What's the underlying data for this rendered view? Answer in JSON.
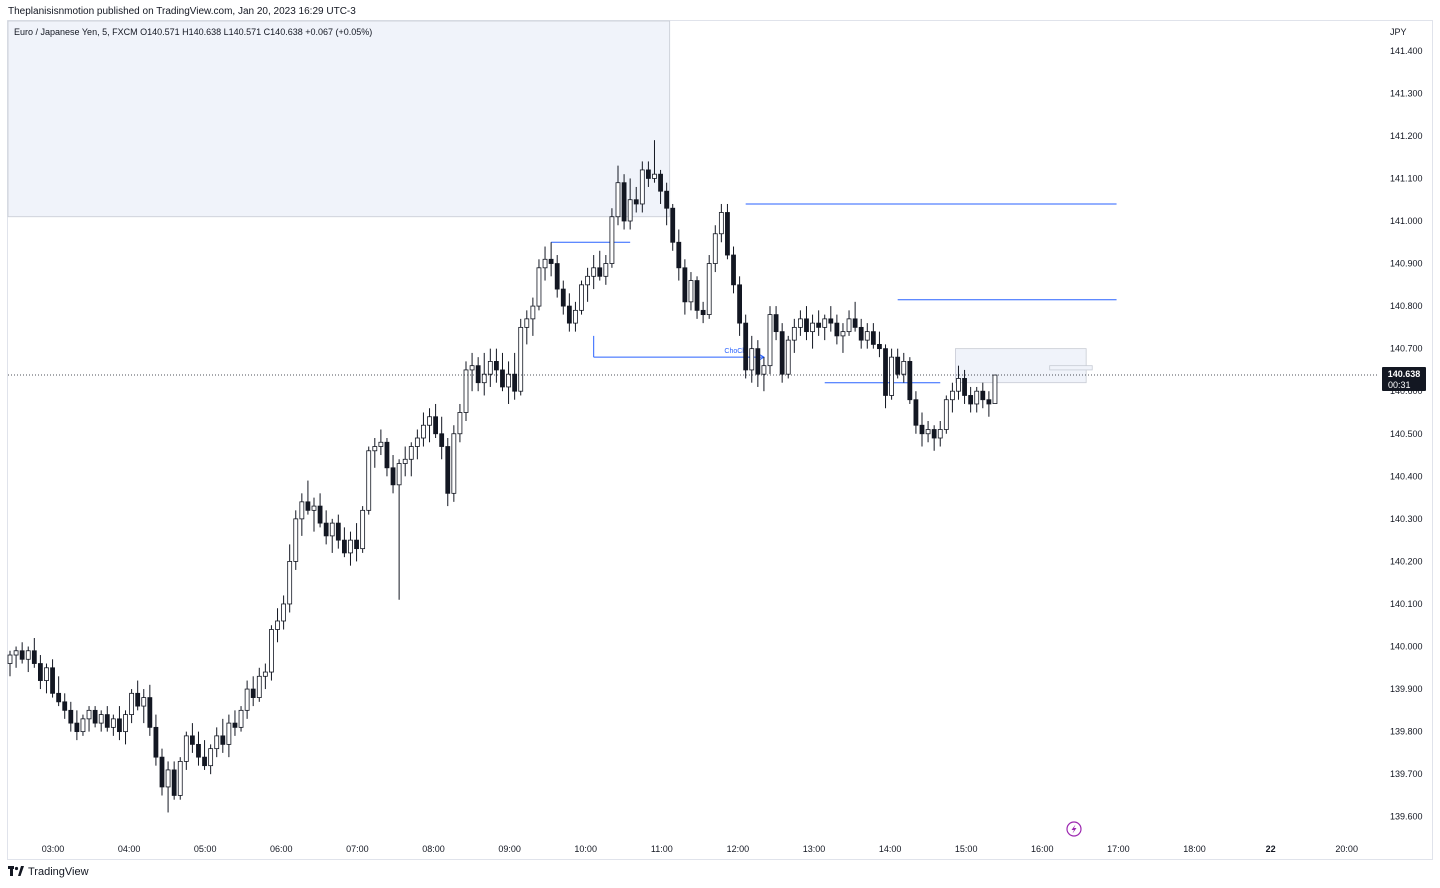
{
  "header": {
    "publish_text": "Theplanisisnmotion published on TradingView.com, Jan 20, 2023 16:29 UTC-3"
  },
  "legend": {
    "text": "Euro / Japanese Yen, 5, FXCM  O140.571  H140.638  L140.571  C140.638  +0.067 (+0.05%)"
  },
  "footer": {
    "brand": "TradingView"
  },
  "colors": {
    "up_body": "#ffffff",
    "down_body": "#131722",
    "wick": "#131722",
    "level_line": "#2962ff",
    "zone_fill": "#f0f3fa",
    "price_tag_bg": "#131722",
    "alert_icon": "#9c27b0"
  },
  "chart_data": {
    "type": "candlestick",
    "symbol": "Euro / Japanese Yen",
    "currency": "JPY",
    "interval": "5",
    "source": "FXCM",
    "y_range": [
      139.55,
      141.47
    ],
    "y_ticks": [
      "141.400",
      "141.300",
      "141.200",
      "141.100",
      "141.000",
      "140.900",
      "140.800",
      "140.700",
      "140.600",
      "140.500",
      "140.400",
      "140.300",
      "140.200",
      "140.100",
      "140.000",
      "139.900",
      "139.800",
      "139.700",
      "139.600"
    ],
    "x_ticks": [
      "03:00",
      "04:00",
      "05:00",
      "06:00",
      "07:00",
      "08:00",
      "09:00",
      "10:00",
      "11:00",
      "12:00",
      "13:00",
      "14:00",
      "15:00",
      "16:00",
      "17:00",
      "18:00",
      "22",
      "20:00"
    ],
    "last_price": "140.638",
    "countdown": "00:31",
    "annotations": [
      {
        "text": "ChoCh"
      }
    ],
    "candles": [
      [
        139.96,
        139.99,
        139.93,
        139.98
      ],
      [
        139.98,
        140.0,
        139.95,
        139.99
      ],
      [
        139.99,
        140.01,
        139.96,
        139.97
      ],
      [
        139.97,
        140.0,
        139.94,
        139.99
      ],
      [
        139.99,
        140.02,
        139.95,
        139.96
      ],
      [
        139.96,
        139.98,
        139.9,
        139.92
      ],
      [
        139.92,
        139.96,
        139.89,
        139.95
      ],
      [
        139.95,
        139.97,
        139.88,
        139.89
      ],
      [
        139.89,
        139.93,
        139.86,
        139.87
      ],
      [
        139.87,
        139.89,
        139.83,
        139.85
      ],
      [
        139.85,
        139.87,
        139.8,
        139.82
      ],
      [
        139.82,
        139.85,
        139.78,
        139.8
      ],
      [
        139.8,
        139.84,
        139.79,
        139.83
      ],
      [
        139.83,
        139.86,
        139.8,
        139.85
      ],
      [
        139.85,
        139.86,
        139.81,
        139.82
      ],
      [
        139.82,
        139.85,
        139.8,
        139.84
      ],
      [
        139.84,
        139.86,
        139.8,
        139.81
      ],
      [
        139.81,
        139.84,
        139.79,
        139.83
      ],
      [
        139.83,
        139.86,
        139.78,
        139.8
      ],
      [
        139.8,
        139.85,
        139.77,
        139.84
      ],
      [
        139.84,
        139.9,
        139.82,
        139.89
      ],
      [
        139.89,
        139.92,
        139.85,
        139.86
      ],
      [
        139.86,
        139.9,
        139.82,
        139.88
      ],
      [
        139.88,
        139.91,
        139.79,
        139.81
      ],
      [
        139.81,
        139.84,
        139.72,
        139.74
      ],
      [
        139.74,
        139.76,
        139.65,
        139.67
      ],
      [
        139.67,
        139.73,
        139.61,
        139.71
      ],
      [
        139.71,
        139.73,
        139.64,
        139.65
      ],
      [
        139.65,
        139.74,
        139.64,
        139.73
      ],
      [
        139.73,
        139.8,
        139.71,
        139.79
      ],
      [
        139.79,
        139.82,
        139.75,
        139.77
      ],
      [
        139.77,
        139.8,
        139.72,
        139.74
      ],
      [
        139.74,
        139.78,
        139.71,
        139.72
      ],
      [
        139.72,
        139.77,
        139.7,
        139.76
      ],
      [
        139.76,
        139.81,
        139.74,
        139.79
      ],
      [
        139.79,
        139.83,
        139.75,
        139.77
      ],
      [
        139.77,
        139.84,
        139.74,
        139.82
      ],
      [
        139.82,
        139.85,
        139.79,
        139.81
      ],
      [
        139.81,
        139.86,
        139.8,
        139.85
      ],
      [
        139.85,
        139.92,
        139.83,
        139.9
      ],
      [
        139.9,
        139.93,
        139.86,
        139.88
      ],
      [
        139.88,
        139.95,
        139.87,
        139.93
      ],
      [
        139.93,
        139.96,
        139.9,
        139.94
      ],
      [
        139.94,
        140.05,
        139.92,
        140.04
      ],
      [
        140.04,
        140.09,
        140.01,
        140.06
      ],
      [
        140.06,
        140.12,
        140.04,
        140.1
      ],
      [
        140.1,
        140.24,
        140.08,
        140.2
      ],
      [
        140.2,
        140.32,
        140.18,
        140.3
      ],
      [
        140.3,
        140.36,
        140.26,
        140.34
      ],
      [
        140.34,
        140.39,
        140.31,
        140.32
      ],
      [
        140.32,
        140.35,
        140.27,
        140.33
      ],
      [
        140.33,
        140.36,
        140.28,
        140.29
      ],
      [
        140.29,
        140.32,
        140.24,
        140.26
      ],
      [
        140.26,
        140.3,
        140.22,
        140.29
      ],
      [
        140.29,
        140.31,
        140.23,
        140.25
      ],
      [
        140.25,
        140.28,
        140.21,
        140.22
      ],
      [
        140.22,
        140.27,
        140.19,
        140.25
      ],
      [
        140.25,
        140.29,
        140.2,
        140.23
      ],
      [
        140.23,
        140.33,
        140.22,
        140.32
      ],
      [
        140.32,
        140.47,
        140.31,
        140.46
      ],
      [
        140.46,
        140.49,
        140.42,
        140.47
      ],
      [
        140.47,
        140.51,
        140.45,
        140.48
      ],
      [
        140.48,
        140.49,
        140.4,
        140.42
      ],
      [
        140.42,
        140.45,
        140.36,
        140.38
      ],
      [
        140.38,
        140.44,
        140.11,
        140.43
      ],
      [
        140.43,
        140.47,
        140.4,
        140.44
      ],
      [
        140.44,
        140.48,
        140.4,
        140.47
      ],
      [
        140.47,
        140.51,
        140.44,
        140.49
      ],
      [
        140.49,
        140.55,
        140.47,
        140.52
      ],
      [
        140.52,
        140.56,
        140.48,
        140.54
      ],
      [
        140.54,
        140.57,
        140.49,
        140.5
      ],
      [
        140.5,
        140.54,
        140.44,
        140.47
      ],
      [
        140.47,
        140.49,
        140.33,
        140.36
      ],
      [
        140.36,
        140.52,
        140.34,
        140.5
      ],
      [
        140.5,
        140.57,
        140.48,
        140.55
      ],
      [
        140.55,
        140.67,
        140.53,
        140.65
      ],
      [
        140.65,
        140.69,
        140.6,
        140.66
      ],
      [
        140.66,
        140.68,
        140.6,
        140.62
      ],
      [
        140.62,
        140.69,
        140.59,
        140.64
      ],
      [
        140.64,
        140.7,
        140.61,
        140.67
      ],
      [
        140.67,
        140.7,
        140.62,
        140.65
      ],
      [
        140.65,
        140.69,
        140.6,
        140.61
      ],
      [
        140.61,
        140.67,
        140.57,
        140.64
      ],
      [
        140.64,
        140.69,
        140.58,
        140.6
      ],
      [
        140.6,
        140.77,
        140.59,
        140.75
      ],
      [
        140.75,
        140.79,
        140.71,
        140.77
      ],
      [
        140.77,
        140.82,
        140.73,
        140.8
      ],
      [
        140.8,
        140.91,
        140.79,
        140.89
      ],
      [
        140.89,
        140.94,
        140.86,
        140.91
      ],
      [
        140.91,
        140.95,
        140.87,
        140.9
      ],
      [
        140.9,
        140.92,
        140.82,
        140.84
      ],
      [
        140.84,
        140.86,
        140.78,
        140.8
      ],
      [
        140.8,
        140.83,
        140.74,
        140.76
      ],
      [
        140.76,
        140.81,
        140.74,
        140.79
      ],
      [
        140.79,
        140.86,
        140.78,
        140.85
      ],
      [
        140.85,
        140.89,
        140.81,
        140.87
      ],
      [
        140.87,
        140.92,
        140.84,
        140.89
      ],
      [
        140.89,
        140.93,
        140.86,
        140.87
      ],
      [
        140.87,
        140.92,
        140.85,
        140.9
      ],
      [
        140.9,
        141.03,
        140.89,
        141.01
      ],
      [
        141.01,
        141.13,
        140.99,
        141.09
      ],
      [
        141.09,
        141.11,
        140.98,
        141.0
      ],
      [
        141.0,
        141.1,
        140.98,
        141.05
      ],
      [
        141.05,
        141.08,
        141.02,
        141.04
      ],
      [
        141.04,
        141.14,
        141.02,
        141.12
      ],
      [
        141.12,
        141.14,
        141.08,
        141.1
      ],
      [
        141.1,
        141.19,
        141.09,
        141.11
      ],
      [
        141.11,
        141.12,
        141.04,
        141.07
      ],
      [
        141.07,
        141.09,
        140.99,
        141.03
      ],
      [
        141.03,
        141.04,
        140.93,
        140.95
      ],
      [
        140.95,
        140.98,
        140.86,
        140.89
      ],
      [
        140.89,
        140.91,
        140.78,
        140.81
      ],
      [
        140.81,
        140.88,
        140.79,
        140.86
      ],
      [
        140.86,
        140.87,
        140.77,
        140.79
      ],
      [
        140.79,
        140.81,
        140.76,
        140.78
      ],
      [
        140.78,
        140.92,
        140.77,
        140.9
      ],
      [
        140.9,
        140.99,
        140.88,
        140.97
      ],
      [
        140.97,
        141.04,
        140.95,
        141.02
      ],
      [
        141.02,
        141.04,
        140.91,
        140.92
      ],
      [
        140.92,
        140.94,
        140.83,
        140.85
      ],
      [
        140.85,
        140.87,
        140.73,
        140.76
      ],
      [
        140.76,
        140.78,
        140.63,
        140.65
      ],
      [
        140.65,
        140.73,
        140.62,
        140.7
      ],
      [
        140.7,
        140.72,
        140.61,
        140.64
      ],
      [
        140.64,
        140.68,
        140.6,
        140.66
      ],
      [
        140.66,
        140.8,
        140.64,
        140.78
      ],
      [
        140.78,
        140.8,
        140.72,
        140.74
      ],
      [
        140.74,
        140.76,
        140.62,
        140.64
      ],
      [
        140.64,
        140.73,
        140.63,
        140.72
      ],
      [
        140.72,
        140.77,
        140.69,
        140.75
      ],
      [
        140.75,
        140.79,
        140.73,
        140.77
      ],
      [
        140.77,
        140.8,
        140.72,
        140.74
      ],
      [
        140.74,
        140.78,
        140.7,
        140.76
      ],
      [
        140.76,
        140.79,
        140.73,
        140.75
      ],
      [
        140.75,
        140.78,
        140.72,
        140.77
      ],
      [
        140.77,
        140.8,
        140.74,
        140.76
      ],
      [
        140.76,
        140.78,
        140.71,
        140.73
      ],
      [
        140.73,
        140.76,
        140.69,
        140.74
      ],
      [
        140.74,
        140.79,
        140.73,
        140.77
      ],
      [
        140.77,
        140.81,
        140.74,
        140.75
      ],
      [
        140.75,
        140.77,
        140.7,
        140.72
      ],
      [
        140.72,
        140.76,
        140.7,
        140.74
      ],
      [
        140.74,
        140.76,
        140.7,
        140.71
      ],
      [
        140.71,
        140.74,
        140.68,
        140.7
      ],
      [
        140.7,
        140.71,
        140.56,
        140.59
      ],
      [
        140.59,
        140.7,
        140.58,
        140.68
      ],
      [
        140.68,
        140.7,
        140.63,
        140.64
      ],
      [
        140.64,
        140.69,
        140.62,
        140.67
      ],
      [
        140.67,
        140.68,
        140.57,
        140.58
      ],
      [
        140.58,
        140.6,
        140.5,
        140.52
      ],
      [
        140.52,
        140.55,
        140.47,
        140.5
      ],
      [
        140.5,
        140.53,
        140.48,
        140.51
      ],
      [
        140.51,
        140.52,
        140.46,
        140.49
      ],
      [
        140.49,
        140.53,
        140.47,
        140.51
      ],
      [
        140.51,
        140.59,
        140.5,
        140.58
      ],
      [
        140.58,
        140.62,
        140.55,
        140.6
      ],
      [
        140.6,
        140.66,
        140.58,
        140.63
      ],
      [
        140.63,
        140.65,
        140.57,
        140.59
      ],
      [
        140.59,
        140.61,
        140.55,
        140.57
      ],
      [
        140.57,
        140.61,
        140.55,
        140.6
      ],
      [
        140.6,
        140.62,
        140.56,
        140.58
      ],
      [
        140.58,
        140.6,
        140.54,
        140.57
      ],
      [
        140.571,
        140.638,
        140.571,
        140.638
      ]
    ],
    "zones": [
      {
        "x0_candle": -1,
        "x1_candle": 108.5,
        "y_top": 141.47,
        "y_bottom": 141.01
      },
      {
        "x0_candle": 155.5,
        "x1_candle": 177,
        "y_top": 140.7,
        "y_bottom": 140.62
      },
      {
        "x0_candle": 171,
        "x1_candle": 178,
        "y_top": 140.66,
        "y_bottom": 140.65
      }
    ],
    "levels": [
      {
        "price": 140.95,
        "from_candle": 89,
        "to_candle": 102
      },
      {
        "price": 141.04,
        "from_candle": 121,
        "to_candle": 182
      },
      {
        "price": 140.815,
        "from_candle": 146,
        "to_candle": 182
      },
      {
        "price": 140.62,
        "from_candle": 134,
        "to_candle": 153
      },
      {
        "price": 140.68,
        "from_candle": 96,
        "to_candle": 124,
        "arrow": true,
        "label": "ChoCh"
      }
    ]
  }
}
